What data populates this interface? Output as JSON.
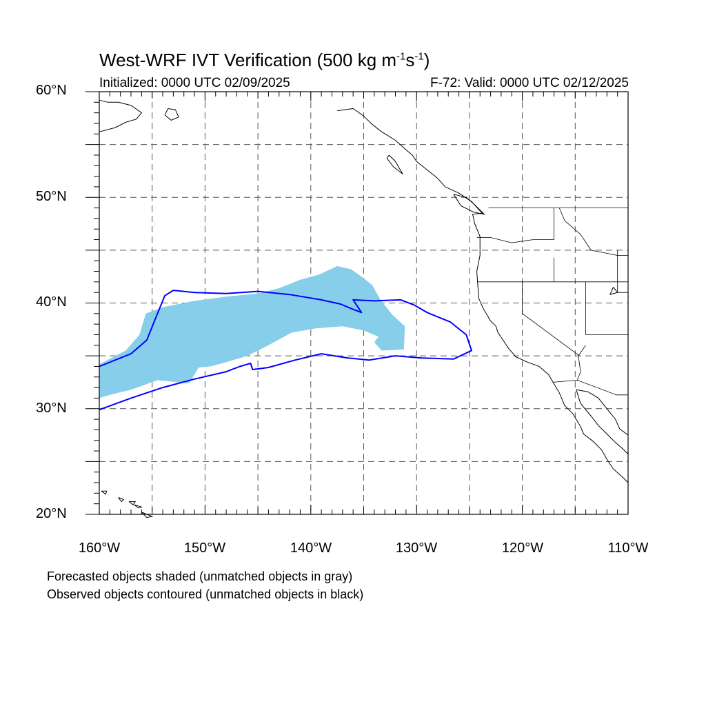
{
  "title_text": "West-WRF IVT Verification (500 kg m",
  "title_exp1": "-1",
  "title_mid": "s",
  "title_exp2": "-1",
  "title_end": ")",
  "initialized": "Initialized: 0000 UTC 02/09/2025",
  "valid": "F-72: Valid: 0000 UTC 02/12/2025",
  "lat_labels": [
    "60°N",
    "50°N",
    "40°N",
    "30°N",
    "20°N"
  ],
  "lon_labels": [
    "160°W",
    "150°W",
    "140°W",
    "130°W",
    "120°W",
    "110°W"
  ],
  "notes": {
    "forecast": "Forecasted objects shaded (unmatched objects in gray)",
    "observed": "Observed objects contoured (unmatched objects in black)"
  },
  "map": {
    "lon_range": [
      -160,
      -110
    ],
    "lat_range": [
      20,
      60
    ],
    "grid_lons": [
      -155,
      -150,
      -145,
      -140,
      -135,
      -130,
      -125,
      -120,
      -115
    ],
    "grid_lats": [
      25,
      30,
      35,
      40,
      45,
      50,
      55
    ],
    "colors": {
      "forecast_fill": "#87ceeb",
      "observed_contour": "#0000ff",
      "coastline": "#000000",
      "grid": "#555555"
    },
    "forecast_object": [
      [
        -160,
        31.0
      ],
      [
        -160,
        34.2
      ],
      [
        -157.5,
        35.5
      ],
      [
        -156.2,
        37.0
      ],
      [
        -155.6,
        39.0
      ],
      [
        -154.0,
        39.6
      ],
      [
        -151.0,
        40.2
      ],
      [
        -148.0,
        40.6
      ],
      [
        -145.0,
        40.9
      ],
      [
        -143.0,
        41.4
      ],
      [
        -141.0,
        42.2
      ],
      [
        -139.2,
        42.7
      ],
      [
        -137.5,
        43.5
      ],
      [
        -136.2,
        43.2
      ],
      [
        -135.2,
        42.5
      ],
      [
        -134.2,
        41.7
      ],
      [
        -133.4,
        40.3
      ],
      [
        -132.3,
        38.9
      ],
      [
        -131.1,
        37.8
      ],
      [
        -131.2,
        35.6
      ],
      [
        -133.3,
        35.5
      ],
      [
        -134.0,
        36.3
      ],
      [
        -133.6,
        36.8
      ],
      [
        -135.0,
        37.4
      ],
      [
        -137.0,
        37.8
      ],
      [
        -139.5,
        37.6
      ],
      [
        -141.8,
        37.2
      ],
      [
        -144.0,
        36.0
      ],
      [
        -146.0,
        35.0
      ],
      [
        -148.0,
        34.4
      ],
      [
        -149.5,
        34.0
      ],
      [
        -150.6,
        33.9
      ],
      [
        -151.5,
        32.4
      ],
      [
        -154.5,
        32.7
      ],
      [
        -157.0,
        31.8
      ],
      [
        -159.0,
        31.3
      ]
    ],
    "observed_object": [
      [
        -160,
        29.9
      ],
      [
        -157.0,
        31.0
      ],
      [
        -154.0,
        32.0
      ],
      [
        -151.0,
        32.8
      ],
      [
        -148.0,
        33.5
      ],
      [
        -146.7,
        34.0
      ],
      [
        -145.7,
        34.3
      ],
      [
        -145.5,
        33.7
      ],
      [
        -144.0,
        33.9
      ],
      [
        -141.5,
        34.6
      ],
      [
        -139.0,
        35.2
      ],
      [
        -136.5,
        34.8
      ],
      [
        -134.5,
        34.6
      ],
      [
        -132.0,
        35.0
      ],
      [
        -129.5,
        34.8
      ],
      [
        -126.5,
        34.7
      ],
      [
        -124.8,
        35.5
      ],
      [
        -125.3,
        37.0
      ],
      [
        -126.8,
        38.2
      ],
      [
        -129.0,
        39.1
      ],
      [
        -130.2,
        39.8
      ],
      [
        -131.5,
        40.3
      ],
      [
        -134.0,
        40.2
      ],
      [
        -136.0,
        40.3
      ],
      [
        -135.2,
        39.1
      ],
      [
        -136.0,
        39.4
      ],
      [
        -137.2,
        39.9
      ],
      [
        -139.0,
        40.3
      ],
      [
        -142.0,
        40.8
      ],
      [
        -145.0,
        41.1
      ],
      [
        -148.0,
        40.9
      ],
      [
        -151.0,
        41.0
      ],
      [
        -153.0,
        41.2
      ],
      [
        -153.8,
        40.7
      ],
      [
        -154.5,
        39.0
      ],
      [
        -155.5,
        36.5
      ],
      [
        -157.0,
        35.2
      ],
      [
        -160,
        34.0
      ]
    ],
    "coastlines": [
      [
        [
          -160,
          56.2
        ],
        [
          -158.5,
          56.6
        ],
        [
          -157.5,
          57.1
        ],
        [
          -156.5,
          57.4
        ],
        [
          -156.0,
          58.0
        ],
        [
          -157.0,
          58.7
        ],
        [
          -158.2,
          59.0
        ],
        [
          -159.2,
          59.0
        ],
        [
          -160,
          59.2
        ]
      ],
      [
        [
          -153.8,
          57.8
        ],
        [
          -153.2,
          57.3
        ],
        [
          -152.5,
          57.6
        ],
        [
          -152.8,
          58.3
        ],
        [
          -153.5,
          58.4
        ],
        [
          -153.8,
          57.8
        ]
      ],
      [
        [
          -137.5,
          58.2
        ],
        [
          -136.0,
          58.4
        ],
        [
          -135.0,
          57.7
        ],
        [
          -134.3,
          57.0
        ],
        [
          -133.3,
          56.2
        ],
        [
          -132.0,
          55.4
        ],
        [
          -131.0,
          54.5
        ],
        [
          -130.4,
          54.0
        ],
        [
          -130.0,
          53.4
        ],
        [
          -129.0,
          52.6
        ],
        [
          -128.0,
          51.8
        ],
        [
          -127.3,
          51.0
        ],
        [
          -126.0,
          50.4
        ],
        [
          -124.8,
          49.6
        ],
        [
          -123.8,
          48.5
        ],
        [
          -124.7,
          48.4
        ],
        [
          -124.5,
          47.5
        ],
        [
          -124.0,
          46.3
        ],
        [
          -124.0,
          44.5
        ],
        [
          -124.3,
          43.0
        ],
        [
          -124.2,
          41.5
        ],
        [
          -124.1,
          40.4
        ],
        [
          -123.7,
          39.5
        ],
        [
          -123.0,
          38.3
        ],
        [
          -122.5,
          37.8
        ],
        [
          -122.3,
          37.2
        ],
        [
          -121.9,
          36.6
        ],
        [
          -121.3,
          35.7
        ],
        [
          -120.6,
          34.9
        ],
        [
          -119.5,
          34.4
        ],
        [
          -118.4,
          34.0
        ],
        [
          -117.5,
          33.2
        ],
        [
          -117.1,
          32.5
        ],
        [
          -116.5,
          31.5
        ],
        [
          -116.0,
          30.3
        ],
        [
          -115.2,
          29.5
        ],
        [
          -114.5,
          28.3
        ],
        [
          -114.2,
          27.6
        ],
        [
          -113.3,
          26.9
        ],
        [
          -112.5,
          26.1
        ],
        [
          -112.0,
          25.2
        ],
        [
          -111.4,
          24.3
        ],
        [
          -110.5,
          23.5
        ],
        [
          -110,
          23.0
        ]
      ],
      [
        [
          -114.9,
          31.8
        ],
        [
          -114.5,
          30.5
        ],
        [
          -113.5,
          29.3
        ],
        [
          -112.8,
          28.4
        ],
        [
          -112.0,
          27.6
        ],
        [
          -111.2,
          26.8
        ],
        [
          -110.5,
          26.2
        ],
        [
          -110,
          25.7
        ]
      ],
      [
        [
          -114.9,
          31.8
        ],
        [
          -113.8,
          31.6
        ],
        [
          -112.8,
          31.0
        ],
        [
          -112.0,
          30.0
        ],
        [
          -111.2,
          29.0
        ],
        [
          -110.8,
          28.1
        ],
        [
          -110,
          27.5
        ]
      ],
      [
        [
          -126.5,
          50.3
        ],
        [
          -125.3,
          50.0
        ],
        [
          -124.5,
          49.3
        ],
        [
          -123.6,
          48.4
        ],
        [
          -124.6,
          48.6
        ],
        [
          -125.8,
          49.2
        ],
        [
          -126.5,
          50.3
        ]
      ],
      [
        [
          -132.6,
          54.0
        ],
        [
          -132.0,
          53.4
        ],
        [
          -131.6,
          52.7
        ],
        [
          -131.3,
          52.2
        ],
        [
          -132.2,
          52.9
        ],
        [
          -132.8,
          53.7
        ],
        [
          -132.6,
          54.0
        ]
      ],
      [
        [
          -111.4,
          41.5
        ],
        [
          -111.0,
          41.0
        ],
        [
          -111.7,
          40.8
        ],
        [
          -111.4,
          41.5
        ]
      ]
    ],
    "islands": [
      [
        [
          -159.8,
          22.2
        ],
        [
          -159.3,
          22.2
        ],
        [
          -159.4,
          21.9
        ],
        [
          -159.8,
          22.2
        ]
      ],
      [
        [
          -158.2,
          21.6
        ],
        [
          -157.7,
          21.4
        ],
        [
          -157.9,
          21.2
        ],
        [
          -158.2,
          21.6
        ]
      ],
      [
        [
          -157.2,
          21.2
        ],
        [
          -156.6,
          21.2
        ],
        [
          -156.8,
          20.9
        ],
        [
          -157.2,
          21.2
        ]
      ],
      [
        [
          -156.7,
          20.9
        ],
        [
          -156.0,
          20.7
        ],
        [
          -156.3,
          20.6
        ],
        [
          -156.7,
          20.9
        ]
      ],
      [
        [
          -156.0,
          20.2
        ],
        [
          -155.0,
          19.8
        ],
        [
          -155.5,
          19.7
        ],
        [
          -156.0,
          20.2
        ]
      ]
    ],
    "borders": [
      [
        [
          -123.2,
          49.0
        ],
        [
          -110,
          49.0
        ]
      ],
      [
        [
          -117.0,
          49.0
        ],
        [
          -117.0,
          46.0
        ]
      ],
      [
        [
          -124.3,
          46.2
        ],
        [
          -123.0,
          46.2
        ],
        [
          -121.0,
          45.7
        ],
        [
          -119.0,
          46.0
        ],
        [
          -117.0,
          46.0
        ]
      ],
      [
        [
          -116.5,
          49.0
        ],
        [
          -116.0,
          47.8
        ],
        [
          -114.5,
          46.5
        ],
        [
          -113.5,
          45.0
        ],
        [
          -111.0,
          44.5
        ],
        [
          -110,
          44.5
        ]
      ],
      [
        [
          -124.2,
          42.0
        ],
        [
          -110,
          42.0
        ]
      ],
      [
        [
          -117.0,
          44.3
        ],
        [
          -117.0,
          42.0
        ]
      ],
      [
        [
          -120.0,
          42.0
        ],
        [
          -120.0,
          39.0
        ],
        [
          -114.6,
          35.0
        ]
      ],
      [
        [
          -114.0,
          42.0
        ],
        [
          -114.0,
          37.0
        ],
        [
          -110,
          37.0
        ]
      ],
      [
        [
          -114.0,
          36.0
        ],
        [
          -114.7,
          35.0
        ],
        [
          -114.5,
          33.5
        ],
        [
          -114.8,
          32.7
        ]
      ],
      [
        [
          -117.1,
          32.5
        ],
        [
          -114.8,
          32.7
        ],
        [
          -111.1,
          31.3
        ],
        [
          -110,
          31.3
        ]
      ],
      [
        [
          -111.0,
          45.0
        ],
        [
          -111.0,
          41.0
        ],
        [
          -110,
          41.0
        ]
      ]
    ]
  }
}
